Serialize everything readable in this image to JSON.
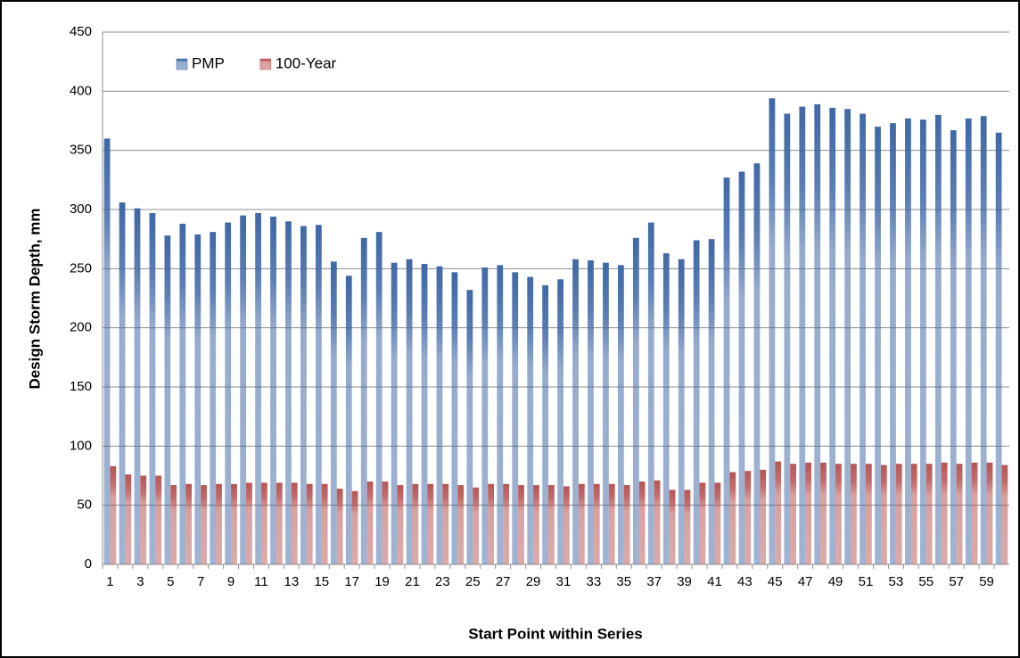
{
  "chart_data": {
    "type": "bar",
    "x_label": "Start Point within Series",
    "y_label": "Design Storm Depth, mm",
    "categories": [
      "1",
      null,
      "3",
      null,
      "5",
      null,
      "7",
      null,
      "9",
      null,
      "11",
      null,
      "13",
      null,
      "15",
      null,
      "17",
      null,
      "19",
      null,
      "21",
      null,
      "23",
      null,
      "25",
      null,
      "27",
      null,
      "29",
      null,
      "31",
      null,
      "33",
      null,
      "35",
      null,
      "37",
      null,
      "39",
      null,
      "41",
      null,
      "43",
      null,
      "45",
      null,
      "47",
      null,
      "49",
      null,
      "51",
      null,
      "53",
      null,
      "55",
      null,
      "57",
      null,
      "59",
      null
    ],
    "series": [
      {
        "name": "PMP",
        "color": "#3f68a6",
        "values": [
          360,
          306,
          301,
          297,
          278,
          288,
          279,
          281,
          289,
          295,
          297,
          294,
          290,
          286,
          287,
          256,
          244,
          276,
          281,
          255,
          258,
          254,
          252,
          247,
          232,
          251,
          253,
          247,
          243,
          236,
          241,
          258,
          257,
          255,
          253,
          276,
          289,
          263,
          258,
          274,
          275,
          327,
          332,
          339,
          394,
          381,
          387,
          389,
          386,
          385,
          381,
          370,
          373,
          377,
          376,
          380,
          367,
          377,
          379,
          365
        ]
      },
      {
        "name": "100-Year",
        "color": "#b85452",
        "values": [
          83,
          76,
          75,
          75,
          67,
          68,
          67,
          68,
          68,
          69,
          69,
          69,
          69,
          68,
          68,
          64,
          62,
          70,
          70,
          67,
          68,
          68,
          68,
          67,
          65,
          68,
          68,
          67,
          67,
          67,
          66,
          68,
          68,
          68,
          67,
          70,
          71,
          63,
          63,
          69,
          69,
          78,
          79,
          80,
          87,
          85,
          86,
          86,
          85,
          85,
          85,
          84,
          85,
          85,
          85,
          86,
          85,
          86,
          86,
          84
        ]
      }
    ],
    "ylim": [
      0,
      450
    ],
    "yticks": [
      0,
      50,
      100,
      150,
      200,
      250,
      300,
      350,
      400,
      450
    ],
    "grid": true,
    "legend": "top-left"
  }
}
